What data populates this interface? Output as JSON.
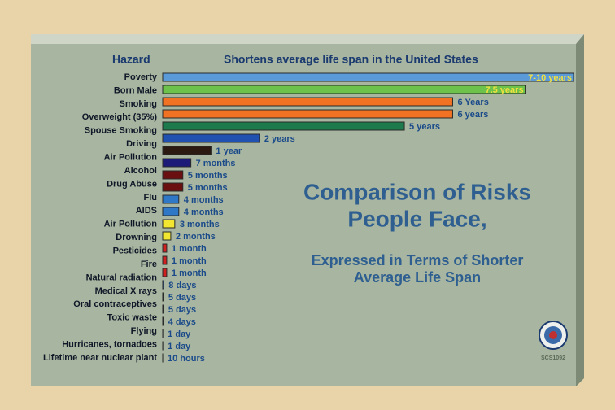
{
  "chart_data": {
    "type": "bar",
    "orientation": "horizontal",
    "axis_title": "Hazard",
    "header": "Shortens average life span in the United States",
    "title_lines": [
      "Comparison of Risks",
      "People Face,"
    ],
    "subtitle_lines": [
      "Expressed in Terms of Shorter",
      "Average Life Span"
    ],
    "code": "SCS1092",
    "categories": [
      "Poverty",
      "Born Male",
      "Smoking",
      "Overweight (35%)",
      "Spouse Smoking",
      "Driving",
      "Air Pollution",
      null,
      "Alcohol",
      "Drug Abuse",
      "Flu",
      "AIDS",
      "Air Pollution",
      "Drowning",
      "Pesticides",
      "Fire",
      "Natural radiation",
      "Medical X rays",
      "Oral contraceptives",
      null,
      "Toxic waste",
      "Flying",
      "Hurricanes, tornadoes",
      "Lifetime near nuclear plant"
    ],
    "values": [
      8.5,
      7.5,
      6,
      6,
      5,
      2,
      1,
      0.583,
      0.417,
      0.417,
      0.333,
      0.333,
      0.25,
      0.167,
      0.083,
      0.083,
      0.083,
      0.022,
      0.014,
      0.014,
      0.011,
      0.003,
      0.003,
      0.001
    ],
    "value_labels": [
      "7-10 years",
      "7.5 years",
      "6 Years",
      "6 years",
      "5 years",
      "2 years",
      "1 year",
      "7 months",
      "5 months",
      "5 months",
      "4 months",
      "4 months",
      "3 months",
      "2 months",
      "1 month",
      "1 month",
      "1 month",
      "8 days",
      "5 days",
      "5 days",
      "4 days",
      "1 day",
      "1 day",
      "10 hours"
    ],
    "colors": [
      "#5a9ad8",
      "#6cc24a",
      "#f07222",
      "#f07222",
      "#1c7a4c",
      "#2050b0",
      "#2a1a12",
      "#1c1c78",
      "#6a1010",
      "#6a1010",
      "#2f78c8",
      "#2f78c8",
      "#f2e630",
      "#f2e630",
      "#d02020",
      "#d02020",
      "#d02020",
      "#3068c8",
      "#f2e630",
      "#f2e630",
      "#1c2a50",
      "#8a1818",
      "#8a1818",
      "#e8e8e8"
    ]
  }
}
